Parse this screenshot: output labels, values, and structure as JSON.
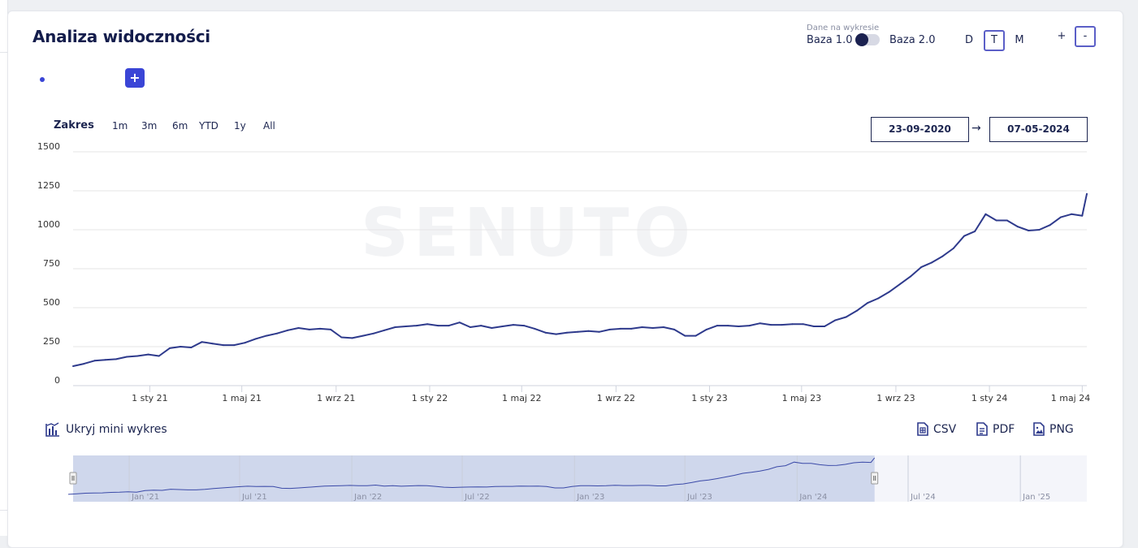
{
  "card": {
    "title": "Analiza widoczności",
    "toggle": {
      "caption": "Dane na wykresie",
      "left_label": "Baza 1.0",
      "right_label": "Baza 2.0",
      "state": "Baza 1.0"
    },
    "granularity": [
      {
        "label": "D",
        "active": false
      },
      {
        "label": "T",
        "active": true
      },
      {
        "label": "M",
        "active": false
      }
    ],
    "zoom": {
      "in_label": "+",
      "out_label": "-"
    },
    "add_button_label": "+",
    "range": {
      "label": "Zakres",
      "buttons": [
        "1m",
        "3m",
        "6m",
        "YTD",
        "1y",
        "All"
      ],
      "from": "23-09-2020",
      "arrow": "→",
      "to": "07-05-2024"
    },
    "watermark": "SENUTO",
    "mini": {
      "toggle_label": "Ukryj mini wykres"
    },
    "export": [
      "CSV",
      "PDF",
      "PNG"
    ]
  },
  "colors": {
    "line": "#2e3a8c",
    "accent": "#3a45d6",
    "navigator_selection": "#cfd7ec",
    "grid": "#e6e6e6"
  },
  "chart_data": {
    "type": "line",
    "title": "",
    "ylim": [
      0,
      1500
    ],
    "y_ticks": [
      "0",
      "250",
      "500",
      "750",
      "1000",
      "1250",
      "1500"
    ],
    "x_ticks": [
      "1 sty 21",
      "1 maj 21",
      "1 wrz 21",
      "1 sty 22",
      "1 maj 22",
      "1 wrz 22",
      "1 sty 23",
      "1 maj 23",
      "1 wrz 23",
      "1 sty 24",
      "1 maj 24"
    ],
    "x_tick_dates": [
      "2021-01-01",
      "2021-05-01",
      "2021-09-01",
      "2022-01-01",
      "2022-05-01",
      "2022-09-01",
      "2023-01-01",
      "2023-05-01",
      "2023-09-01",
      "2024-01-01",
      "2024-05-01"
    ],
    "xlim": [
      "2020-09-23",
      "2024-05-07"
    ],
    "grid": true,
    "series": [
      {
        "name": "",
        "points": [
          [
            "2020-09-23",
            125
          ],
          [
            "2020-10-07",
            140
          ],
          [
            "2020-10-21",
            160
          ],
          [
            "2020-11-04",
            165
          ],
          [
            "2020-11-18",
            170
          ],
          [
            "2020-12-02",
            185
          ],
          [
            "2020-12-16",
            190
          ],
          [
            "2020-12-30",
            200
          ],
          [
            "2021-01-13",
            190
          ],
          [
            "2021-01-27",
            240
          ],
          [
            "2021-02-10",
            250
          ],
          [
            "2021-02-24",
            245
          ],
          [
            "2021-03-10",
            280
          ],
          [
            "2021-03-24",
            270
          ],
          [
            "2021-04-07",
            260
          ],
          [
            "2021-04-21",
            260
          ],
          [
            "2021-05-05",
            275
          ],
          [
            "2021-05-19",
            300
          ],
          [
            "2021-06-02",
            320
          ],
          [
            "2021-06-16",
            335
          ],
          [
            "2021-06-30",
            355
          ],
          [
            "2021-07-14",
            370
          ],
          [
            "2021-07-28",
            360
          ],
          [
            "2021-08-11",
            365
          ],
          [
            "2021-08-25",
            360
          ],
          [
            "2021-09-08",
            310
          ],
          [
            "2021-09-22",
            305
          ],
          [
            "2021-10-06",
            320
          ],
          [
            "2021-10-20",
            335
          ],
          [
            "2021-11-03",
            355
          ],
          [
            "2021-11-17",
            375
          ],
          [
            "2021-12-01",
            380
          ],
          [
            "2021-12-15",
            385
          ],
          [
            "2021-12-29",
            395
          ],
          [
            "2022-01-12",
            385
          ],
          [
            "2022-01-26",
            385
          ],
          [
            "2022-02-09",
            405
          ],
          [
            "2022-02-23",
            375
          ],
          [
            "2022-03-09",
            385
          ],
          [
            "2022-03-23",
            370
          ],
          [
            "2022-04-06",
            380
          ],
          [
            "2022-04-20",
            390
          ],
          [
            "2022-05-04",
            385
          ],
          [
            "2022-05-18",
            365
          ],
          [
            "2022-06-01",
            340
          ],
          [
            "2022-06-15",
            330
          ],
          [
            "2022-06-29",
            340
          ],
          [
            "2022-07-13",
            345
          ],
          [
            "2022-07-27",
            350
          ],
          [
            "2022-08-10",
            345
          ],
          [
            "2022-08-24",
            360
          ],
          [
            "2022-09-07",
            365
          ],
          [
            "2022-09-21",
            365
          ],
          [
            "2022-10-05",
            375
          ],
          [
            "2022-10-19",
            370
          ],
          [
            "2022-11-02",
            375
          ],
          [
            "2022-11-16",
            360
          ],
          [
            "2022-11-30",
            320
          ],
          [
            "2022-12-14",
            320
          ],
          [
            "2022-12-28",
            360
          ],
          [
            "2023-01-11",
            385
          ],
          [
            "2023-01-25",
            385
          ],
          [
            "2023-02-08",
            380
          ],
          [
            "2023-02-22",
            385
          ],
          [
            "2023-03-08",
            400
          ],
          [
            "2023-03-22",
            390
          ],
          [
            "2023-04-05",
            390
          ],
          [
            "2023-04-19",
            395
          ],
          [
            "2023-05-03",
            395
          ],
          [
            "2023-05-17",
            380
          ],
          [
            "2023-05-31",
            380
          ],
          [
            "2023-06-14",
            420
          ],
          [
            "2023-06-28",
            440
          ],
          [
            "2023-07-12",
            480
          ],
          [
            "2023-07-26",
            530
          ],
          [
            "2023-08-09",
            560
          ],
          [
            "2023-08-23",
            600
          ],
          [
            "2023-09-06",
            650
          ],
          [
            "2023-09-20",
            700
          ],
          [
            "2023-10-04",
            760
          ],
          [
            "2023-10-18",
            790
          ],
          [
            "2023-11-01",
            830
          ],
          [
            "2023-11-15",
            880
          ],
          [
            "2023-11-29",
            960
          ],
          [
            "2023-12-13",
            990
          ],
          [
            "2023-12-27",
            1100
          ],
          [
            "2024-01-10",
            1060
          ],
          [
            "2024-01-24",
            1060
          ],
          [
            "2024-02-07",
            1020
          ],
          [
            "2024-02-21",
            995
          ],
          [
            "2024-03-06",
            1000
          ],
          [
            "2024-03-20",
            1030
          ],
          [
            "2024-04-03",
            1080
          ],
          [
            "2024-04-17",
            1100
          ],
          [
            "2024-05-01",
            1090
          ],
          [
            "2024-05-07",
            1230
          ]
        ]
      }
    ]
  },
  "navigator_data": {
    "x_ticks": [
      "Jan '21",
      "Jul '21",
      "Jan '22",
      "Jul '22",
      "Jan '23",
      "Jul '23",
      "Jan '24",
      "Jul '24",
      "Jan '25"
    ],
    "selection": [
      "2020-09-23",
      "2024-05-07"
    ]
  }
}
